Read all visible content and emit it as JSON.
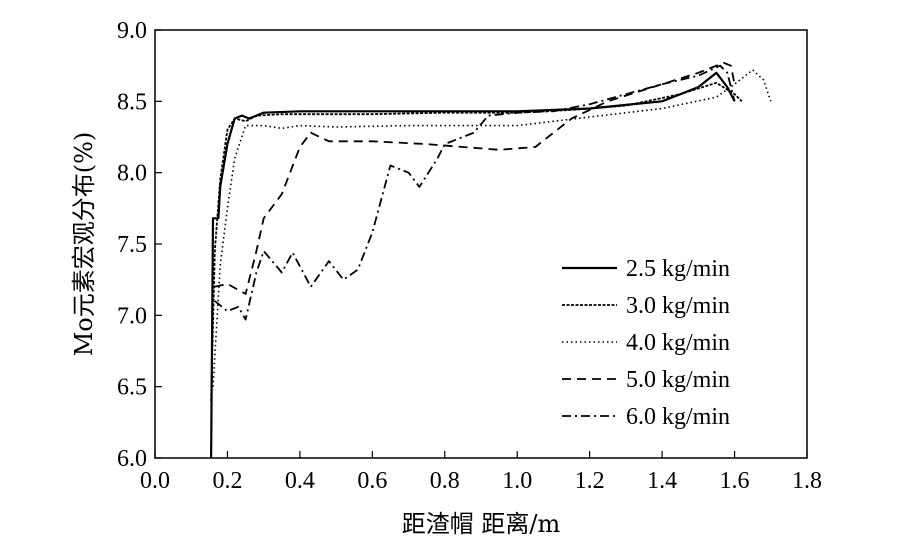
{
  "chart_data": {
    "type": "line",
    "xlabel": "距渣帽 距离/m",
    "ylabel": "Mo元素宏观分布(%)",
    "xlim": [
      0.0,
      1.8
    ],
    "ylim": [
      6.0,
      9.0
    ],
    "xticks": [
      "0.0",
      "0.2",
      "0.4",
      "0.6",
      "0.8",
      "1.0",
      "1.2",
      "1.4",
      "1.6",
      "1.8"
    ],
    "yticks": [
      "6.0",
      "6.5",
      "7.0",
      "7.5",
      "8.0",
      "8.5",
      "9.0"
    ],
    "grid": false,
    "legend_position": "bottom-right",
    "series": [
      {
        "name": "2.5 kg/min",
        "dash": "solid",
        "points": [
          [
            0.155,
            6.0
          ],
          [
            0.16,
            7.68
          ],
          [
            0.175,
            7.68
          ],
          [
            0.18,
            7.9
          ],
          [
            0.2,
            8.2
          ],
          [
            0.22,
            8.38
          ],
          [
            0.24,
            8.4
          ],
          [
            0.26,
            8.38
          ],
          [
            0.3,
            8.42
          ],
          [
            0.4,
            8.43
          ],
          [
            0.6,
            8.43
          ],
          [
            0.8,
            8.43
          ],
          [
            1.0,
            8.43
          ],
          [
            1.2,
            8.45
          ],
          [
            1.4,
            8.5
          ],
          [
            1.5,
            8.6
          ],
          [
            1.55,
            8.7
          ],
          [
            1.58,
            8.6
          ],
          [
            1.6,
            8.5
          ]
        ]
      },
      {
        "name": "3.0 kg/min",
        "dash": "dense",
        "points": [
          [
            0.155,
            6.4
          ],
          [
            0.165,
            7.45
          ],
          [
            0.18,
            7.95
          ],
          [
            0.2,
            8.3
          ],
          [
            0.22,
            8.38
          ],
          [
            0.25,
            8.36
          ],
          [
            0.28,
            8.4
          ],
          [
            0.35,
            8.41
          ],
          [
            0.6,
            8.41
          ],
          [
            0.8,
            8.42
          ],
          [
            1.0,
            8.42
          ],
          [
            1.15,
            8.44
          ],
          [
            1.3,
            8.47
          ],
          [
            1.45,
            8.55
          ],
          [
            1.55,
            8.63
          ],
          [
            1.6,
            8.55
          ],
          [
            1.62,
            8.5
          ]
        ]
      },
      {
        "name": "4.0 kg/min",
        "dash": "dotted",
        "points": [
          [
            0.16,
            6.5
          ],
          [
            0.18,
            7.35
          ],
          [
            0.2,
            7.75
          ],
          [
            0.22,
            8.1
          ],
          [
            0.25,
            8.33
          ],
          [
            0.3,
            8.33
          ],
          [
            0.35,
            8.31
          ],
          [
            0.4,
            8.33
          ],
          [
            0.5,
            8.32
          ],
          [
            0.7,
            8.33
          ],
          [
            0.9,
            8.33
          ],
          [
            1.0,
            8.33
          ],
          [
            1.1,
            8.36
          ],
          [
            1.2,
            8.39
          ],
          [
            1.4,
            8.45
          ],
          [
            1.55,
            8.53
          ],
          [
            1.6,
            8.62
          ],
          [
            1.65,
            8.72
          ],
          [
            1.68,
            8.65
          ],
          [
            1.7,
            8.5
          ]
        ]
      },
      {
        "name": "5.0 kg/min",
        "dash": "dashed",
        "points": [
          [
            0.165,
            7.2
          ],
          [
            0.2,
            7.22
          ],
          [
            0.25,
            7.15
          ],
          [
            0.28,
            7.45
          ],
          [
            0.3,
            7.68
          ],
          [
            0.35,
            7.85
          ],
          [
            0.4,
            8.18
          ],
          [
            0.43,
            8.28
          ],
          [
            0.48,
            8.22
          ],
          [
            0.6,
            8.22
          ],
          [
            0.75,
            8.2
          ],
          [
            0.85,
            8.18
          ],
          [
            0.95,
            8.16
          ],
          [
            1.05,
            8.18
          ],
          [
            1.15,
            8.38
          ],
          [
            1.25,
            8.5
          ],
          [
            1.4,
            8.62
          ],
          [
            1.5,
            8.7
          ],
          [
            1.57,
            8.77
          ],
          [
            1.59,
            8.75
          ],
          [
            1.6,
            8.62
          ]
        ]
      },
      {
        "name": "6.0 kg/min",
        "dash": "dashdot",
        "points": [
          [
            0.165,
            7.1
          ],
          [
            0.2,
            7.03
          ],
          [
            0.23,
            7.06
          ],
          [
            0.25,
            6.97
          ],
          [
            0.28,
            7.3
          ],
          [
            0.3,
            7.45
          ],
          [
            0.35,
            7.3
          ],
          [
            0.38,
            7.44
          ],
          [
            0.43,
            7.2
          ],
          [
            0.48,
            7.38
          ],
          [
            0.52,
            7.25
          ],
          [
            0.56,
            7.32
          ],
          [
            0.6,
            7.58
          ],
          [
            0.65,
            8.05
          ],
          [
            0.7,
            8.0
          ],
          [
            0.73,
            7.9
          ],
          [
            0.78,
            8.1
          ],
          [
            0.8,
            8.2
          ],
          [
            0.88,
            8.28
          ],
          [
            0.92,
            8.4
          ],
          [
            1.0,
            8.42
          ],
          [
            1.1,
            8.43
          ],
          [
            1.2,
            8.48
          ],
          [
            1.4,
            8.62
          ],
          [
            1.5,
            8.68
          ],
          [
            1.56,
            8.75
          ],
          [
            1.58,
            8.7
          ],
          [
            1.6,
            8.5
          ]
        ]
      }
    ]
  }
}
